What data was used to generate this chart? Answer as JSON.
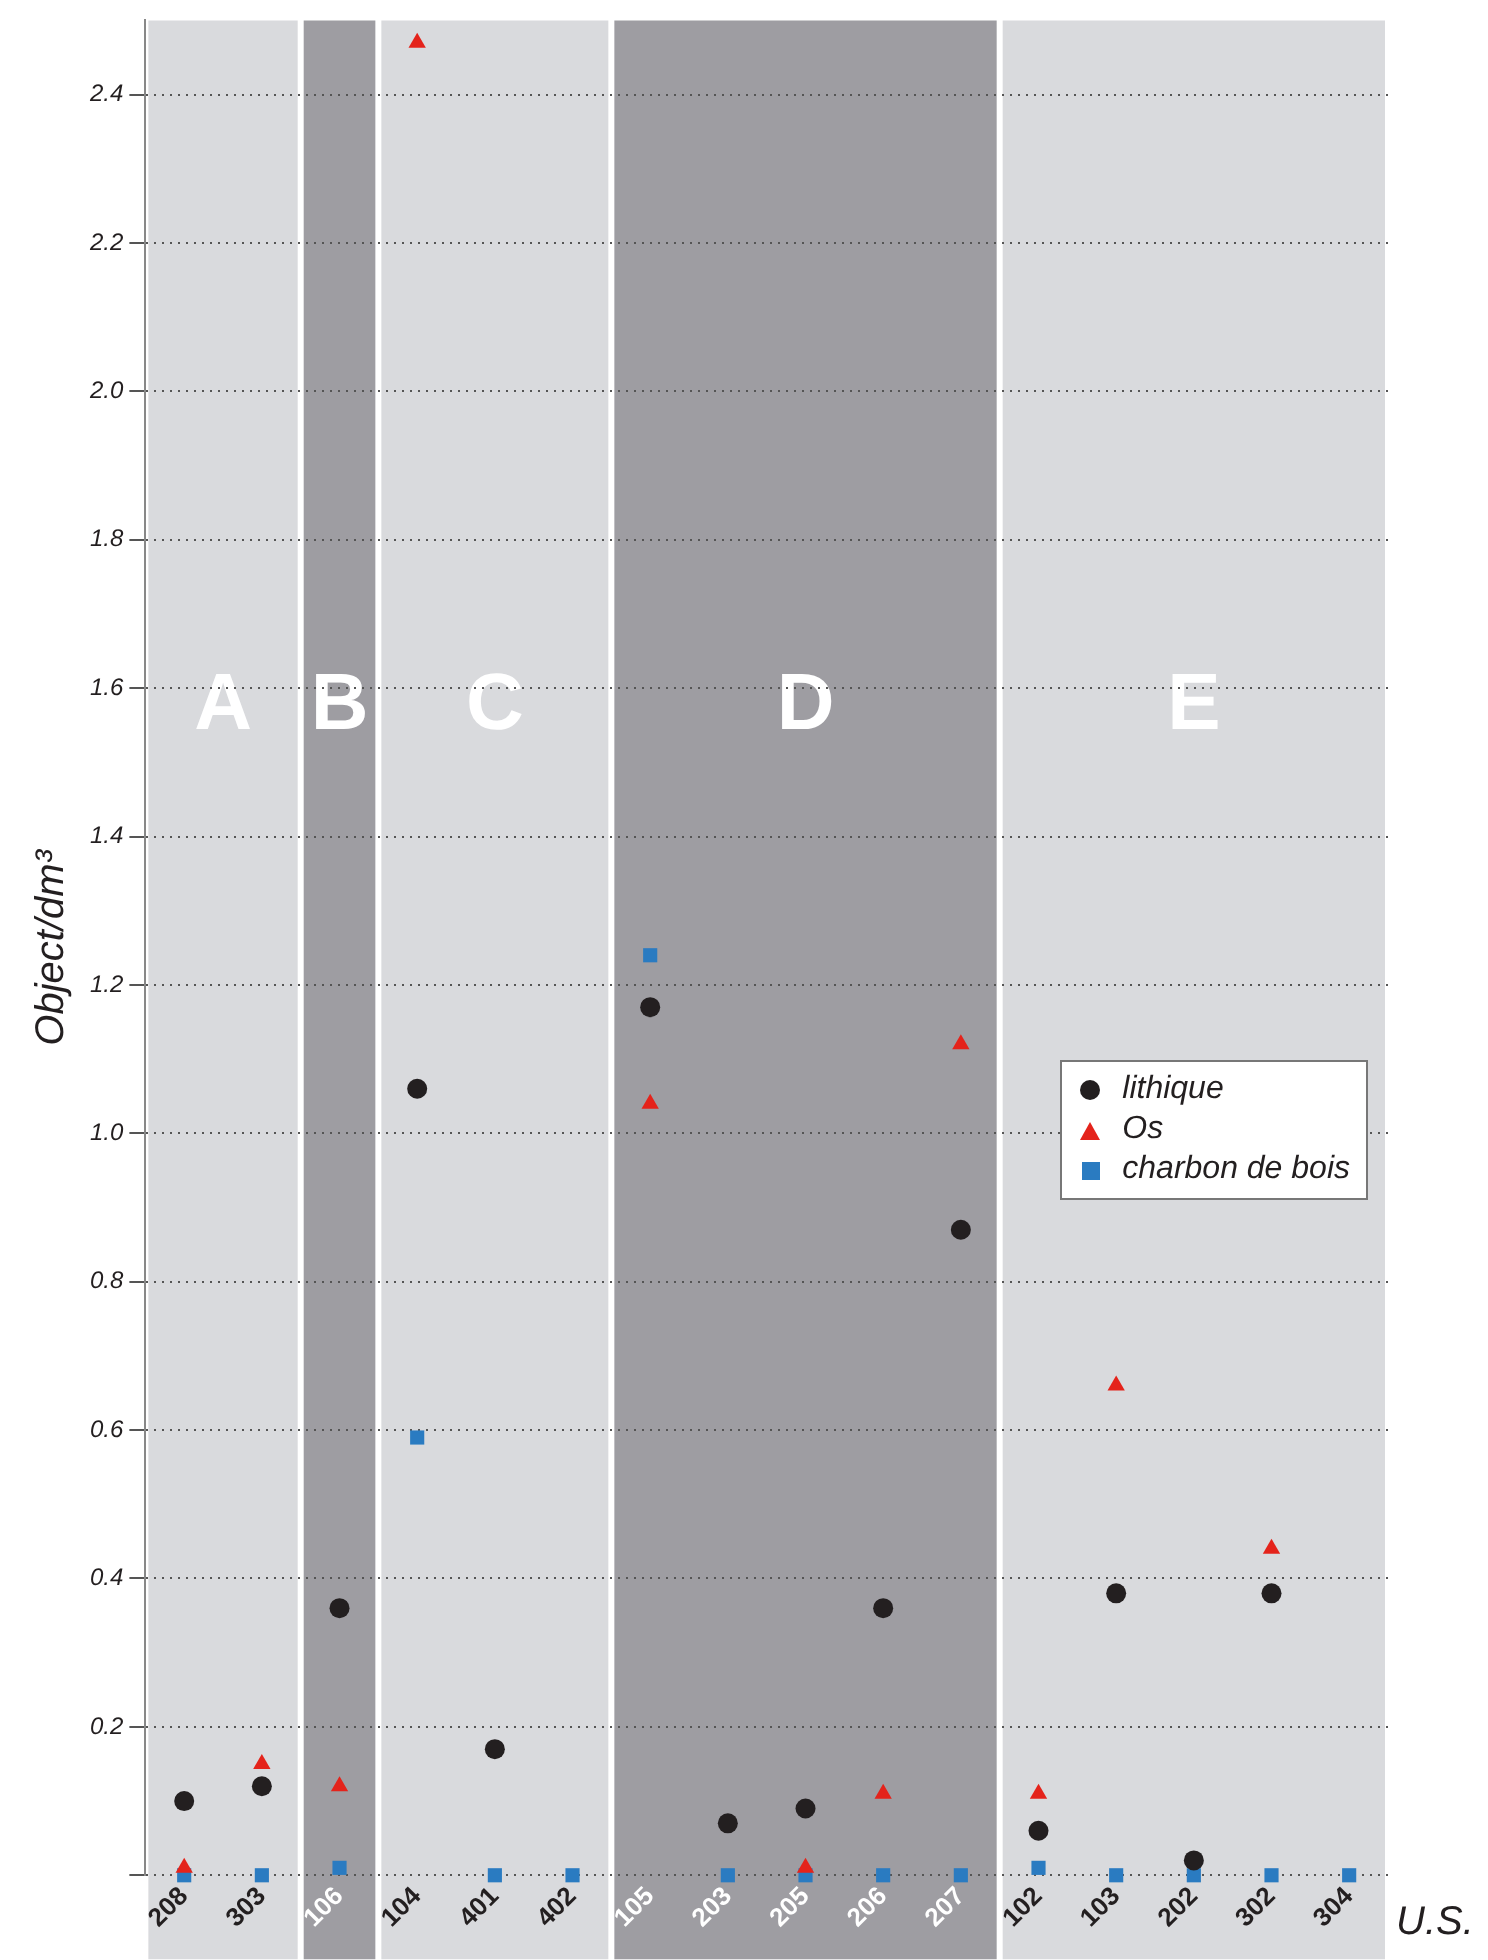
{
  "chart_data": {
    "type": "scatter",
    "xlabel": "U.S.",
    "ylabel": "Object/dm³",
    "categories": [
      "208",
      "303",
      "106",
      "104",
      "401",
      "402",
      "105",
      "203",
      "205",
      "206",
      "207",
      "102",
      "103",
      "202",
      "302",
      "304"
    ],
    "series": [
      {
        "name": "lithique",
        "color": "#231f20",
        "marker": "circle",
        "values": [
          0.1,
          0.12,
          0.36,
          1.06,
          0.17,
          null,
          1.17,
          0.07,
          0.09,
          0.36,
          0.87,
          0.06,
          0.38,
          0.02,
          0.38,
          null
        ]
      },
      {
        "name": "Os",
        "color": "#e4231b",
        "marker": "triangle",
        "values": [
          0.01,
          0.15,
          0.12,
          2.47,
          null,
          null,
          1.04,
          null,
          0.01,
          0.11,
          1.12,
          0.11,
          0.66,
          null,
          0.44,
          null
        ]
      },
      {
        "name": "charbon de bois",
        "color": "#2a7bc1",
        "marker": "square",
        "values": [
          0,
          0,
          0.01,
          0.59,
          0,
          0,
          1.24,
          0,
          0,
          0,
          0,
          0.01,
          0,
          0,
          0,
          0
        ]
      }
    ],
    "bands": [
      {
        "axis": "x",
        "from": "208",
        "to": "303",
        "label": "A",
        "color": "#d9dadd"
      },
      {
        "axis": "x",
        "from": "106",
        "to": "106",
        "label": "B",
        "color": "#9e9da2"
      },
      {
        "axis": "x",
        "from": "104",
        "to": "402",
        "label": "C",
        "color": "#d9dadd"
      },
      {
        "axis": "x",
        "from": "105",
        "to": "207",
        "label": "D",
        "color": "#9e9da2"
      },
      {
        "axis": "x",
        "from": "102",
        "to": "304",
        "label": "E",
        "color": "#d9dadd"
      }
    ],
    "ylim": [
      0,
      2.5
    ],
    "yticks": [
      {
        "value": 0,
        "label": null
      },
      0.2,
      0.4,
      0.6,
      0.8,
      {
        "value": 1,
        "label": "1.0"
      },
      1.2,
      1.4,
      1.6,
      1.8,
      {
        "value": 2,
        "label": "2.0"
      },
      2.2,
      2.4
    ],
    "grid": "y",
    "legend": "right"
  }
}
